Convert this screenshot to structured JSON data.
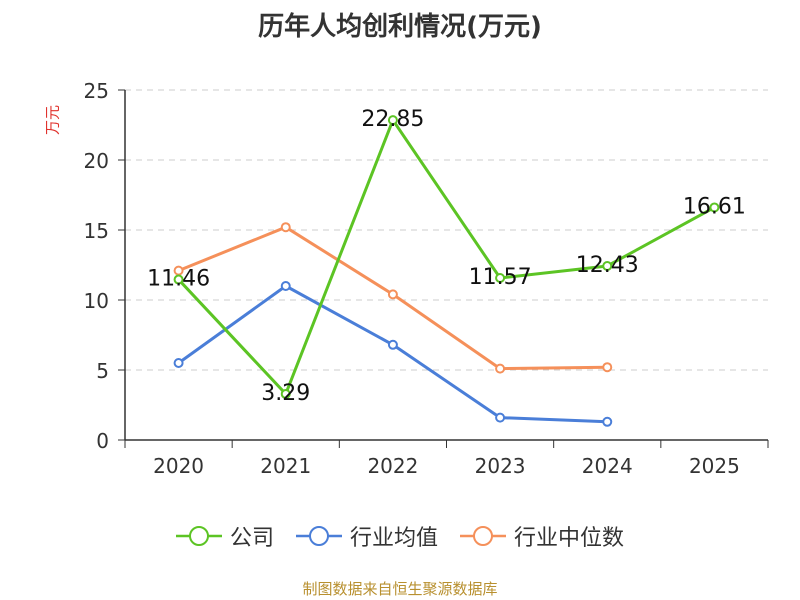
{
  "chart_data": {
    "type": "line",
    "title": "历年人均创利情况(万元)",
    "ylabel": "万元",
    "xlabel": "",
    "categories": [
      "2020",
      "2021",
      "2022",
      "2023",
      "2024",
      "2025"
    ],
    "ylim": [
      0,
      25
    ],
    "yticks": [
      0,
      5,
      10,
      15,
      20,
      25
    ],
    "grid": true,
    "legend_position": "bottom",
    "series": [
      {
        "name": "公司",
        "color": "#5cc424",
        "values": [
          11.46,
          3.29,
          22.85,
          11.57,
          12.43,
          16.61
        ],
        "labels": [
          "11.46",
          "3.29",
          "22.85",
          "11.57",
          "12.43",
          "16.61"
        ]
      },
      {
        "name": "行业均值",
        "color": "#4a7ed8",
        "values": [
          5.5,
          11.0,
          6.8,
          1.6,
          1.3,
          null
        ]
      },
      {
        "name": "行业中位数",
        "color": "#f5905a",
        "values": [
          12.1,
          15.2,
          10.4,
          5.1,
          5.2,
          null
        ]
      }
    ]
  },
  "footer": "制图数据来自恒生聚源数据库"
}
